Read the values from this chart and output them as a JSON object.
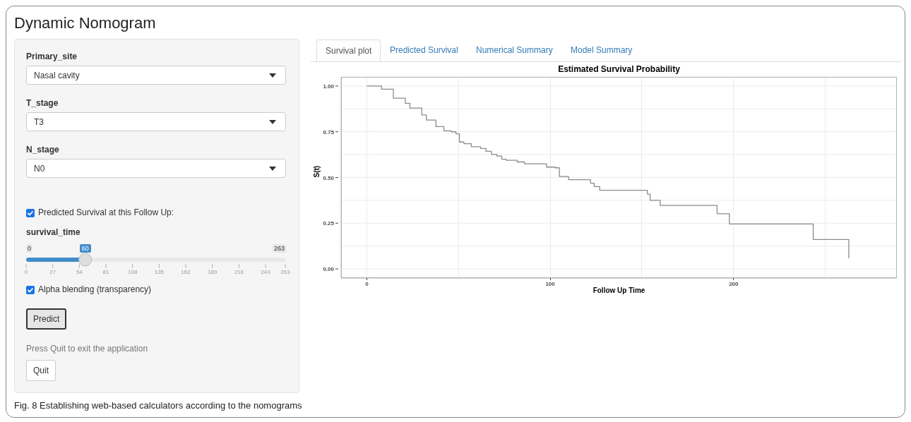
{
  "chart_data": [
    {
      "type": "other",
      "title": "Dynamic Nomogram",
      "annotations": [
        "Primary_site",
        "Nasal cavity",
        "T_stage",
        "T3",
        "N_stage",
        "N0",
        "Predicted Survival at this Follow Up:",
        "survival_time",
        "0",
        "60",
        "263",
        "0",
        "27",
        "54",
        "81",
        "108",
        "135",
        "162",
        "189",
        "216",
        "243",
        "263",
        "Alpha blending (transparency)",
        "Predict",
        "Press Quit to exit the application",
        "Quit"
      ]
    },
    {
      "type": "step",
      "title": "Estimated Survival Probability",
      "xlabel": "Follow Up Time",
      "ylabel": "S(t)",
      "annotations": [
        "Survival plot",
        "Predicted Survival",
        "Numerical Summary",
        "Model Summary",
        "Fig. 8 Establishing web-based calculators according to the nomograms"
      ],
      "x": [
        0,
        8,
        14.5,
        21,
        23.5,
        30,
        32.5,
        37.7,
        42,
        46,
        48.6,
        50.5,
        53,
        57,
        62,
        65,
        68,
        71,
        73.6,
        76,
        82,
        86,
        98,
        102.6,
        105,
        110,
        122,
        124,
        127,
        153,
        154.5,
        160,
        191,
        197.7,
        243.4,
        262.8
      ],
      "series": [
        {
          "color": "#8a8a8a",
          "values": [
            1.0,
            0.983,
            0.934,
            0.906,
            0.88,
            0.842,
            0.814,
            0.778,
            0.755,
            0.75,
            0.739,
            0.694,
            0.685,
            0.668,
            0.659,
            0.643,
            0.626,
            0.617,
            0.6,
            0.594,
            0.585,
            0.575,
            0.557,
            0.553,
            0.505,
            0.488,
            0.469,
            0.45,
            0.43,
            0.409,
            0.375,
            0.347,
            0.302,
            0.246,
            0.161,
            0.058
          ]
        }
      ],
      "xlim": [
        -14,
        289
      ],
      "ylim": [
        -0.05,
        1.05
      ],
      "xticks": [
        0,
        {
          "value": 50,
          "label": null
        },
        100,
        {
          "value": 150,
          "label": null
        },
        200,
        {
          "value": 250,
          "label": null
        }
      ],
      "yticks": [
        {
          "value": 0,
          "label": "0.00"
        },
        {
          "value": 0.125,
          "label": null
        },
        {
          "value": 0.25,
          "label": "0.25"
        },
        {
          "value": 0.375,
          "label": null
        },
        {
          "value": 0.5,
          "label": "0.50"
        },
        {
          "value": 0.625,
          "label": null
        },
        {
          "value": 0.75,
          "label": "0.75"
        },
        {
          "value": 0.875,
          "label": null
        },
        {
          "value": 1,
          "label": "1.00"
        }
      ],
      "grid": true
    }
  ]
}
